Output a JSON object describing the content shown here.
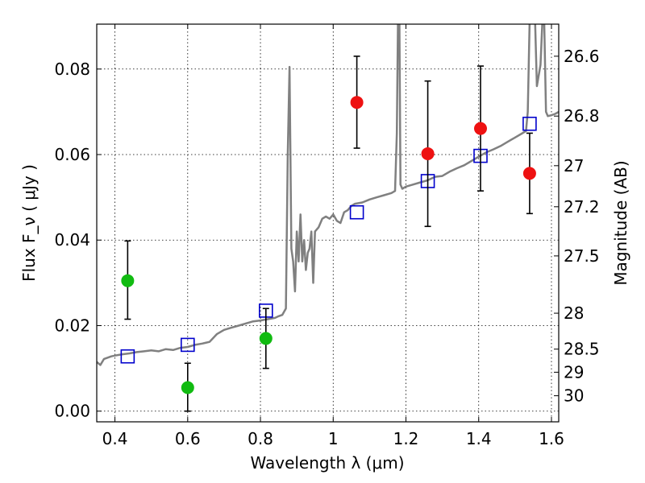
{
  "chart_data": {
    "type": "scatter",
    "xlabel": "Wavelength  λ (μm)",
    "ylabel": "Flux  F_ν  ( μJy )",
    "y2label": "Magnitude (AB)",
    "xlim": [
      0.35,
      1.62
    ],
    "ylim": [
      -0.0025,
      0.0905
    ],
    "grid": true,
    "x_ticks": [
      {
        "value": 0.4,
        "label": "0.4"
      },
      {
        "value": 0.6,
        "label": "0.6"
      },
      {
        "value": 0.8,
        "label": "0.8"
      },
      {
        "value": 1.0,
        "label": "1"
      },
      {
        "value": 1.2,
        "label": "1.2"
      },
      {
        "value": 1.4,
        "label": "1.4"
      },
      {
        "value": 1.6,
        "label": "1.6"
      }
    ],
    "y_ticks": [
      {
        "value": 0.0,
        "label": "0.00"
      },
      {
        "value": 0.02,
        "label": "0.02"
      },
      {
        "value": 0.04,
        "label": "0.04"
      },
      {
        "value": 0.06,
        "label": "0.06"
      },
      {
        "value": 0.08,
        "label": "0.08"
      }
    ],
    "y2_ticks": [
      {
        "label": "26.6",
        "flux": 0.083
      },
      {
        "label": "26.8",
        "flux": 0.069
      },
      {
        "label": "27",
        "flux": 0.0574
      },
      {
        "label": "27.2",
        "flux": 0.0478
      },
      {
        "label": "27.5",
        "flux": 0.0363
      },
      {
        "label": "28",
        "flux": 0.0229
      },
      {
        "label": "28.5",
        "flux": 0.0145
      },
      {
        "label": "29",
        "flux": 0.0091
      },
      {
        "label": "30",
        "flux": 0.0036
      }
    ],
    "series": [
      {
        "color": "#808080",
        "kind": "line",
        "points": [
          [
            0.35,
            0.0115
          ],
          [
            0.36,
            0.0108
          ],
          [
            0.37,
            0.0122
          ],
          [
            0.38,
            0.0125
          ],
          [
            0.39,
            0.0128
          ],
          [
            0.4,
            0.013
          ],
          [
            0.42,
            0.0133
          ],
          [
            0.44,
            0.0135
          ],
          [
            0.46,
            0.0138
          ],
          [
            0.48,
            0.014
          ],
          [
            0.5,
            0.0142
          ],
          [
            0.52,
            0.014
          ],
          [
            0.54,
            0.0145
          ],
          [
            0.56,
            0.0143
          ],
          [
            0.58,
            0.0148
          ],
          [
            0.6,
            0.015
          ],
          [
            0.62,
            0.0155
          ],
          [
            0.64,
            0.0158
          ],
          [
            0.66,
            0.0162
          ],
          [
            0.68,
            0.018
          ],
          [
            0.7,
            0.019
          ],
          [
            0.72,
            0.0195
          ],
          [
            0.74,
            0.02
          ],
          [
            0.76,
            0.0205
          ],
          [
            0.78,
            0.021
          ],
          [
            0.8,
            0.0212
          ],
          [
            0.82,
            0.0215
          ],
          [
            0.84,
            0.0218
          ],
          [
            0.85,
            0.0222
          ],
          [
            0.86,
            0.0225
          ],
          [
            0.87,
            0.024
          ],
          [
            0.875,
            0.06
          ],
          [
            0.88,
            0.0805
          ],
          [
            0.885,
            0.038
          ],
          [
            0.89,
            0.035
          ],
          [
            0.895,
            0.028
          ],
          [
            0.9,
            0.042
          ],
          [
            0.905,
            0.035
          ],
          [
            0.91,
            0.046
          ],
          [
            0.915,
            0.035
          ],
          [
            0.92,
            0.04
          ],
          [
            0.925,
            0.033
          ],
          [
            0.93,
            0.037
          ],
          [
            0.935,
            0.038
          ],
          [
            0.94,
            0.042
          ],
          [
            0.945,
            0.03
          ],
          [
            0.95,
            0.042
          ],
          [
            0.96,
            0.043
          ],
          [
            0.97,
            0.045
          ],
          [
            0.98,
            0.0455
          ],
          [
            0.99,
            0.045
          ],
          [
            1.0,
            0.046
          ],
          [
            1.01,
            0.0445
          ],
          [
            1.02,
            0.044
          ],
          [
            1.03,
            0.0465
          ],
          [
            1.04,
            0.047
          ],
          [
            1.05,
            0.048
          ],
          [
            1.06,
            0.0485
          ],
          [
            1.08,
            0.0488
          ],
          [
            1.1,
            0.0495
          ],
          [
            1.12,
            0.05
          ],
          [
            1.14,
            0.0505
          ],
          [
            1.16,
            0.051
          ],
          [
            1.17,
            0.0515
          ],
          [
            1.175,
            0.065
          ],
          [
            1.178,
            0.091
          ],
          [
            1.182,
            0.091
          ],
          [
            1.185,
            0.053
          ],
          [
            1.19,
            0.052
          ],
          [
            1.2,
            0.0525
          ],
          [
            1.22,
            0.053
          ],
          [
            1.24,
            0.0535
          ],
          [
            1.26,
            0.054
          ],
          [
            1.28,
            0.0548
          ],
          [
            1.3,
            0.055
          ],
          [
            1.32,
            0.056
          ],
          [
            1.34,
            0.0568
          ],
          [
            1.36,
            0.0575
          ],
          [
            1.38,
            0.0585
          ],
          [
            1.4,
            0.0595
          ],
          [
            1.42,
            0.0605
          ],
          [
            1.44,
            0.0612
          ],
          [
            1.46,
            0.062
          ],
          [
            1.48,
            0.063
          ],
          [
            1.5,
            0.064
          ],
          [
            1.52,
            0.065
          ],
          [
            1.53,
            0.0655
          ],
          [
            1.535,
            0.07
          ],
          [
            1.54,
            0.091
          ],
          [
            1.555,
            0.091
          ],
          [
            1.56,
            0.076
          ],
          [
            1.57,
            0.081
          ],
          [
            1.575,
            0.091
          ],
          [
            1.58,
            0.091
          ],
          [
            1.585,
            0.07
          ],
          [
            1.59,
            0.069
          ],
          [
            1.6,
            0.0692
          ],
          [
            1.61,
            0.0695
          ],
          [
            1.62,
            0.07
          ]
        ]
      },
      {
        "color": "#0000cc",
        "kind": "open-square",
        "points": [
          [
            0.435,
            0.0128
          ],
          [
            0.6,
            0.0155
          ],
          [
            0.815,
            0.0235
          ],
          [
            1.065,
            0.0465
          ],
          [
            1.26,
            0.0538
          ],
          [
            1.405,
            0.0597
          ],
          [
            1.54,
            0.0672
          ]
        ]
      },
      {
        "color": "#11bb11",
        "kind": "point-error",
        "points": [
          {
            "x": 0.435,
            "y": 0.0305,
            "ylo": 0.0215,
            "yhi": 0.0398
          },
          {
            "x": 0.6,
            "y": 0.0055,
            "ylo": 0.0,
            "yhi": 0.0112
          },
          {
            "x": 0.815,
            "y": 0.017,
            "ylo": 0.01,
            "yhi": 0.024
          }
        ]
      },
      {
        "color": "#ee1111",
        "kind": "point-error",
        "points": [
          {
            "x": 1.065,
            "y": 0.0722,
            "ylo": 0.0615,
            "yhi": 0.083
          },
          {
            "x": 1.26,
            "y": 0.0602,
            "ylo": 0.0432,
            "yhi": 0.0772
          },
          {
            "x": 1.405,
            "y": 0.0661,
            "ylo": 0.0515,
            "yhi": 0.0807
          },
          {
            "x": 1.54,
            "y": 0.0556,
            "ylo": 0.0462,
            "yhi": 0.065
          }
        ]
      }
    ]
  }
}
